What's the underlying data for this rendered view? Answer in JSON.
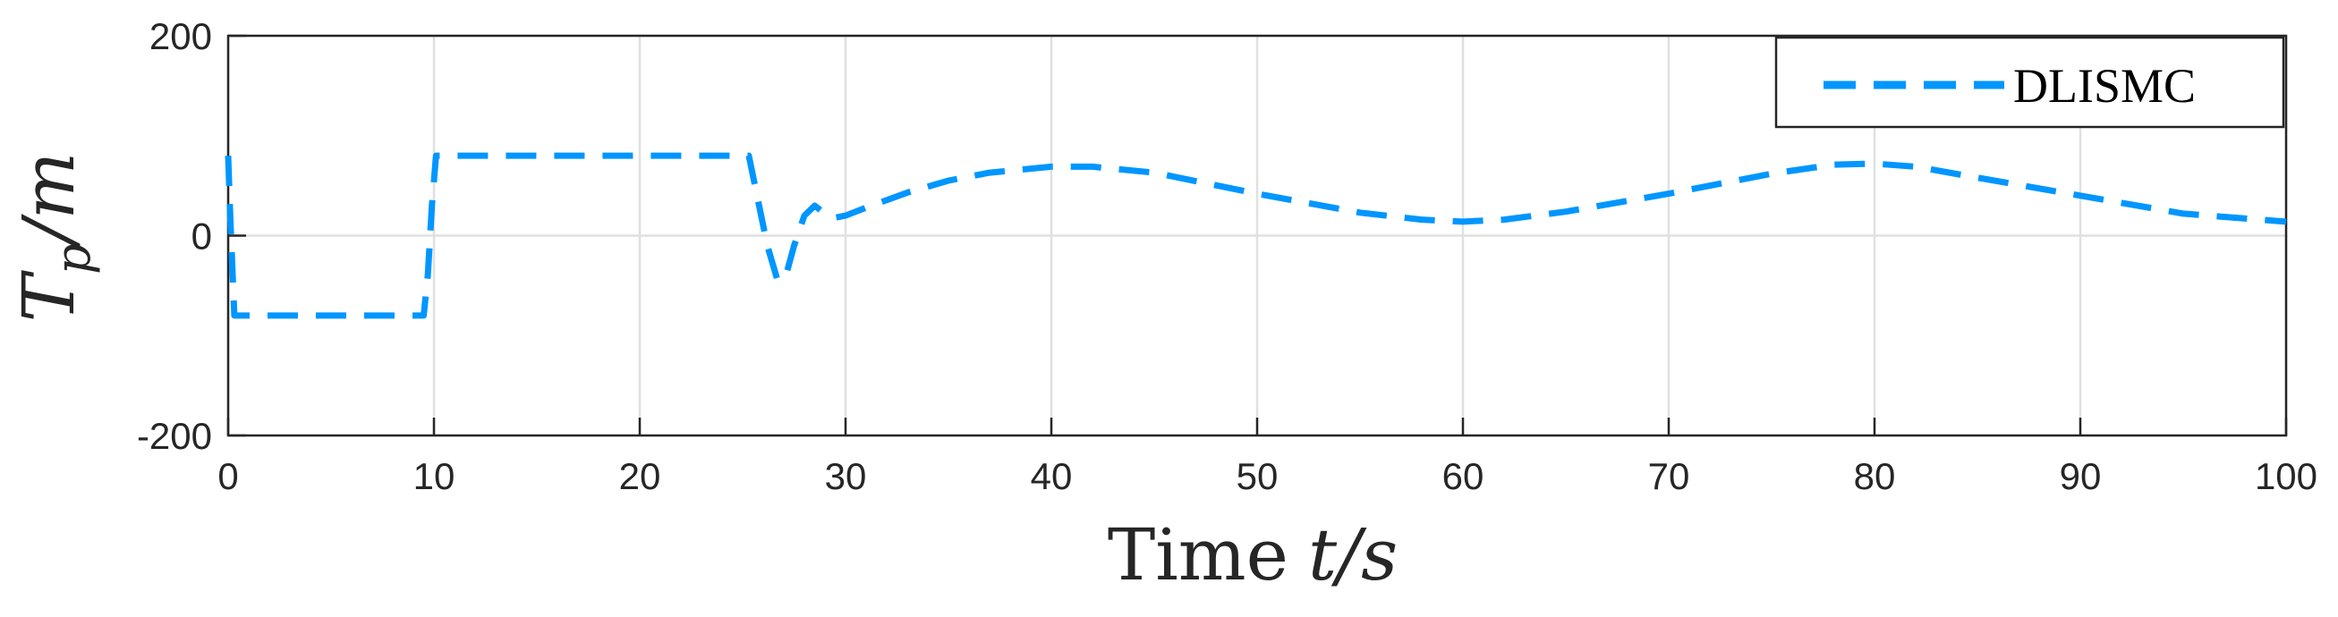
{
  "chart_data": {
    "type": "line",
    "title": "",
    "xlabel": {
      "word": "Time",
      "symbol": "t/s"
    },
    "ylabel": {
      "symbol": "T",
      "subscript": "p",
      "unit": "/m"
    },
    "xlim": [
      0,
      100
    ],
    "ylim": [
      -200,
      200
    ],
    "xticks": [
      "0",
      "10",
      "20",
      "30",
      "40",
      "50",
      "60",
      "70",
      "80",
      "90",
      "100"
    ],
    "yticks": [
      "-200",
      "0",
      "200"
    ],
    "grid": true,
    "legend_position": "top-right",
    "series": [
      {
        "name": "DLISMC",
        "style": "dashed",
        "color": "#0096FF",
        "x": [
          0,
          0.1,
          0.3,
          2,
          5,
          8,
          9.5,
          9.7,
          9.9,
          10.1,
          12,
          15,
          20,
          23,
          25.3,
          25.7,
          26.2,
          26.7,
          27.1,
          27.5,
          28,
          28.5,
          29,
          29.5,
          30,
          31,
          33,
          35,
          37,
          40,
          42,
          45,
          50,
          55,
          58,
          60,
          62,
          65,
          70,
          75,
          78,
          80,
          82,
          85,
          90,
          95,
          100
        ],
        "y": [
          80,
          20,
          -80,
          -80,
          -80,
          -80,
          -80,
          -40,
          30,
          80,
          80,
          80,
          80,
          80,
          80,
          40,
          -10,
          -45,
          -40,
          -10,
          20,
          30,
          22,
          18,
          20,
          28,
          43,
          55,
          63,
          69,
          69,
          63,
          42,
          23,
          16,
          14,
          16,
          24,
          42,
          62,
          71,
          72,
          69,
          58,
          40,
          22,
          14
        ]
      }
    ]
  }
}
